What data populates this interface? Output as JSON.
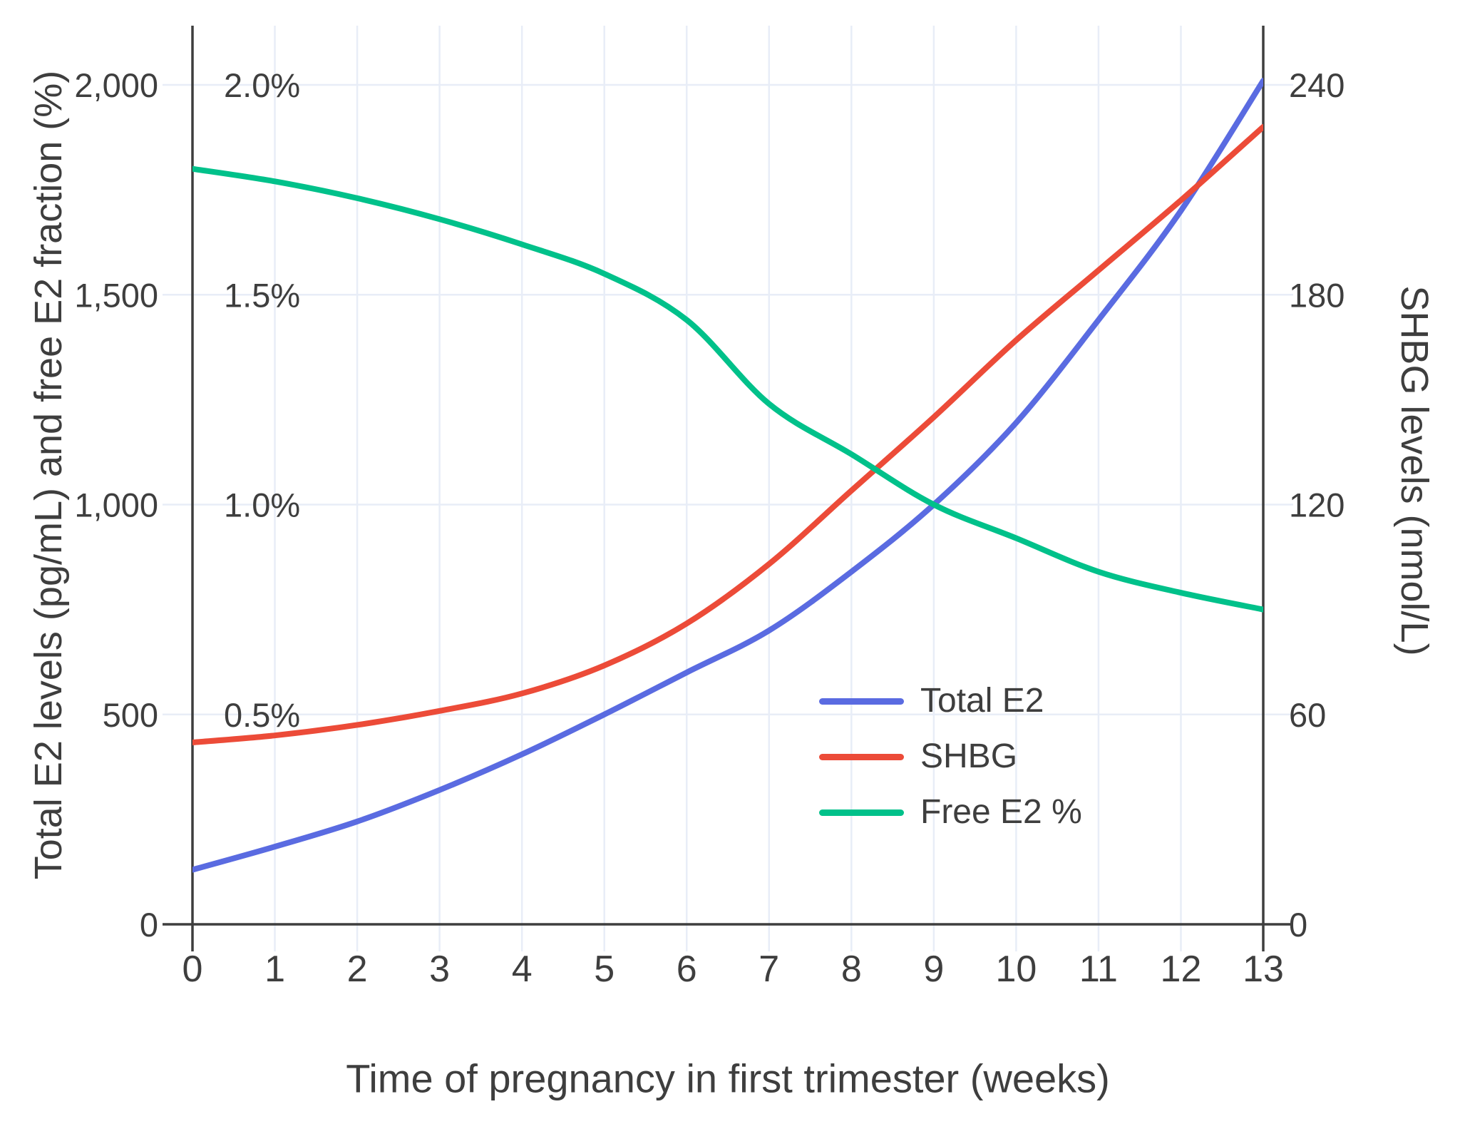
{
  "page": {
    "background": "#ffffff"
  },
  "chart_data": {
    "type": "line",
    "title": "",
    "x_label": "Time of pregnancy in first trimester (weeks)",
    "y_left_label": "Total E2 levels (pg/mL) and free E2 fraction (%)",
    "y_right_label": "SHBG levels (nmol/L)",
    "x": [
      0,
      1,
      2,
      3,
      4,
      5,
      6,
      7,
      8,
      9,
      10,
      11,
      12,
      13
    ],
    "x_tick_labels": [
      "0",
      "1",
      "2",
      "3",
      "4",
      "5",
      "6",
      "7",
      "8",
      "9",
      "10",
      "11",
      "12",
      "13"
    ],
    "left_axis": {
      "range": [
        0,
        2143
      ],
      "ticks": [
        {
          "value": 0,
          "label": "0"
        },
        {
          "value": 500,
          "label": "500"
        },
        {
          "value": 1000,
          "label": "1,000"
        },
        {
          "value": 1500,
          "label": "1,500"
        },
        {
          "value": 2000,
          "label": "2,000"
        }
      ],
      "percent_ticks": [
        {
          "value": 500,
          "label": "0.5%"
        },
        {
          "value": 1000,
          "label": "1.0%"
        },
        {
          "value": 1500,
          "label": "1.5%"
        },
        {
          "value": 2000,
          "label": "2.0%"
        }
      ],
      "grid": true
    },
    "right_axis": {
      "range": [
        0,
        257
      ],
      "ticks": [
        {
          "value": 0,
          "label": "0"
        },
        {
          "value": 60,
          "label": "60"
        },
        {
          "value": 120,
          "label": "120"
        },
        {
          "value": 180,
          "label": "180"
        },
        {
          "value": 240,
          "label": "240"
        }
      ]
    },
    "series": [
      {
        "name": "Total E2",
        "axis": "left",
        "unit": "pg/mL",
        "color": "#5a6be1",
        "values": [
          130,
          185,
          245,
          320,
          405,
          500,
          600,
          700,
          840,
          1000,
          1195,
          1440,
          1700,
          2010
        ]
      },
      {
        "name": "SHBG",
        "axis": "right",
        "unit": "nmol/L",
        "color": "#ec4b38",
        "values": [
          52,
          54,
          57,
          61,
          66,
          74,
          86,
          103,
          124,
          145,
          167,
          187,
          207,
          228
        ]
      },
      {
        "name": "Free E2 %",
        "axis": "left-percent",
        "unit": "%",
        "color": "#00c18a",
        "values": [
          1.8,
          1.77,
          1.73,
          1.68,
          1.62,
          1.55,
          1.44,
          1.24,
          1.12,
          1.0,
          0.92,
          0.84,
          0.79,
          0.75
        ]
      }
    ],
    "legend": {
      "position": "inside-right-center",
      "items": [
        "Total E2",
        "SHBG",
        "Free E2 %"
      ]
    },
    "annotations": {
      "crossings": [
        {
          "series": [
            "Total E2",
            "Free E2 %"
          ],
          "week": 9,
          "left_value": 1000
        },
        {
          "series": [
            "SHBG",
            "Free E2 %"
          ],
          "week": 8.3,
          "left_value": 1080
        },
        {
          "series": [
            "Total E2",
            "SHBG"
          ],
          "week": 12.2,
          "left_value": 1760
        }
      ]
    }
  },
  "style": {
    "grid_color": "#e8edf7",
    "axis_color": "#3e3e3e",
    "text_color": "#3e3e3e",
    "background": "#ffffff",
    "series_colors": {
      "total_e2": "#5a6be1",
      "shbg": "#ec4b38",
      "free_e2_pct": "#00c18a"
    }
  }
}
